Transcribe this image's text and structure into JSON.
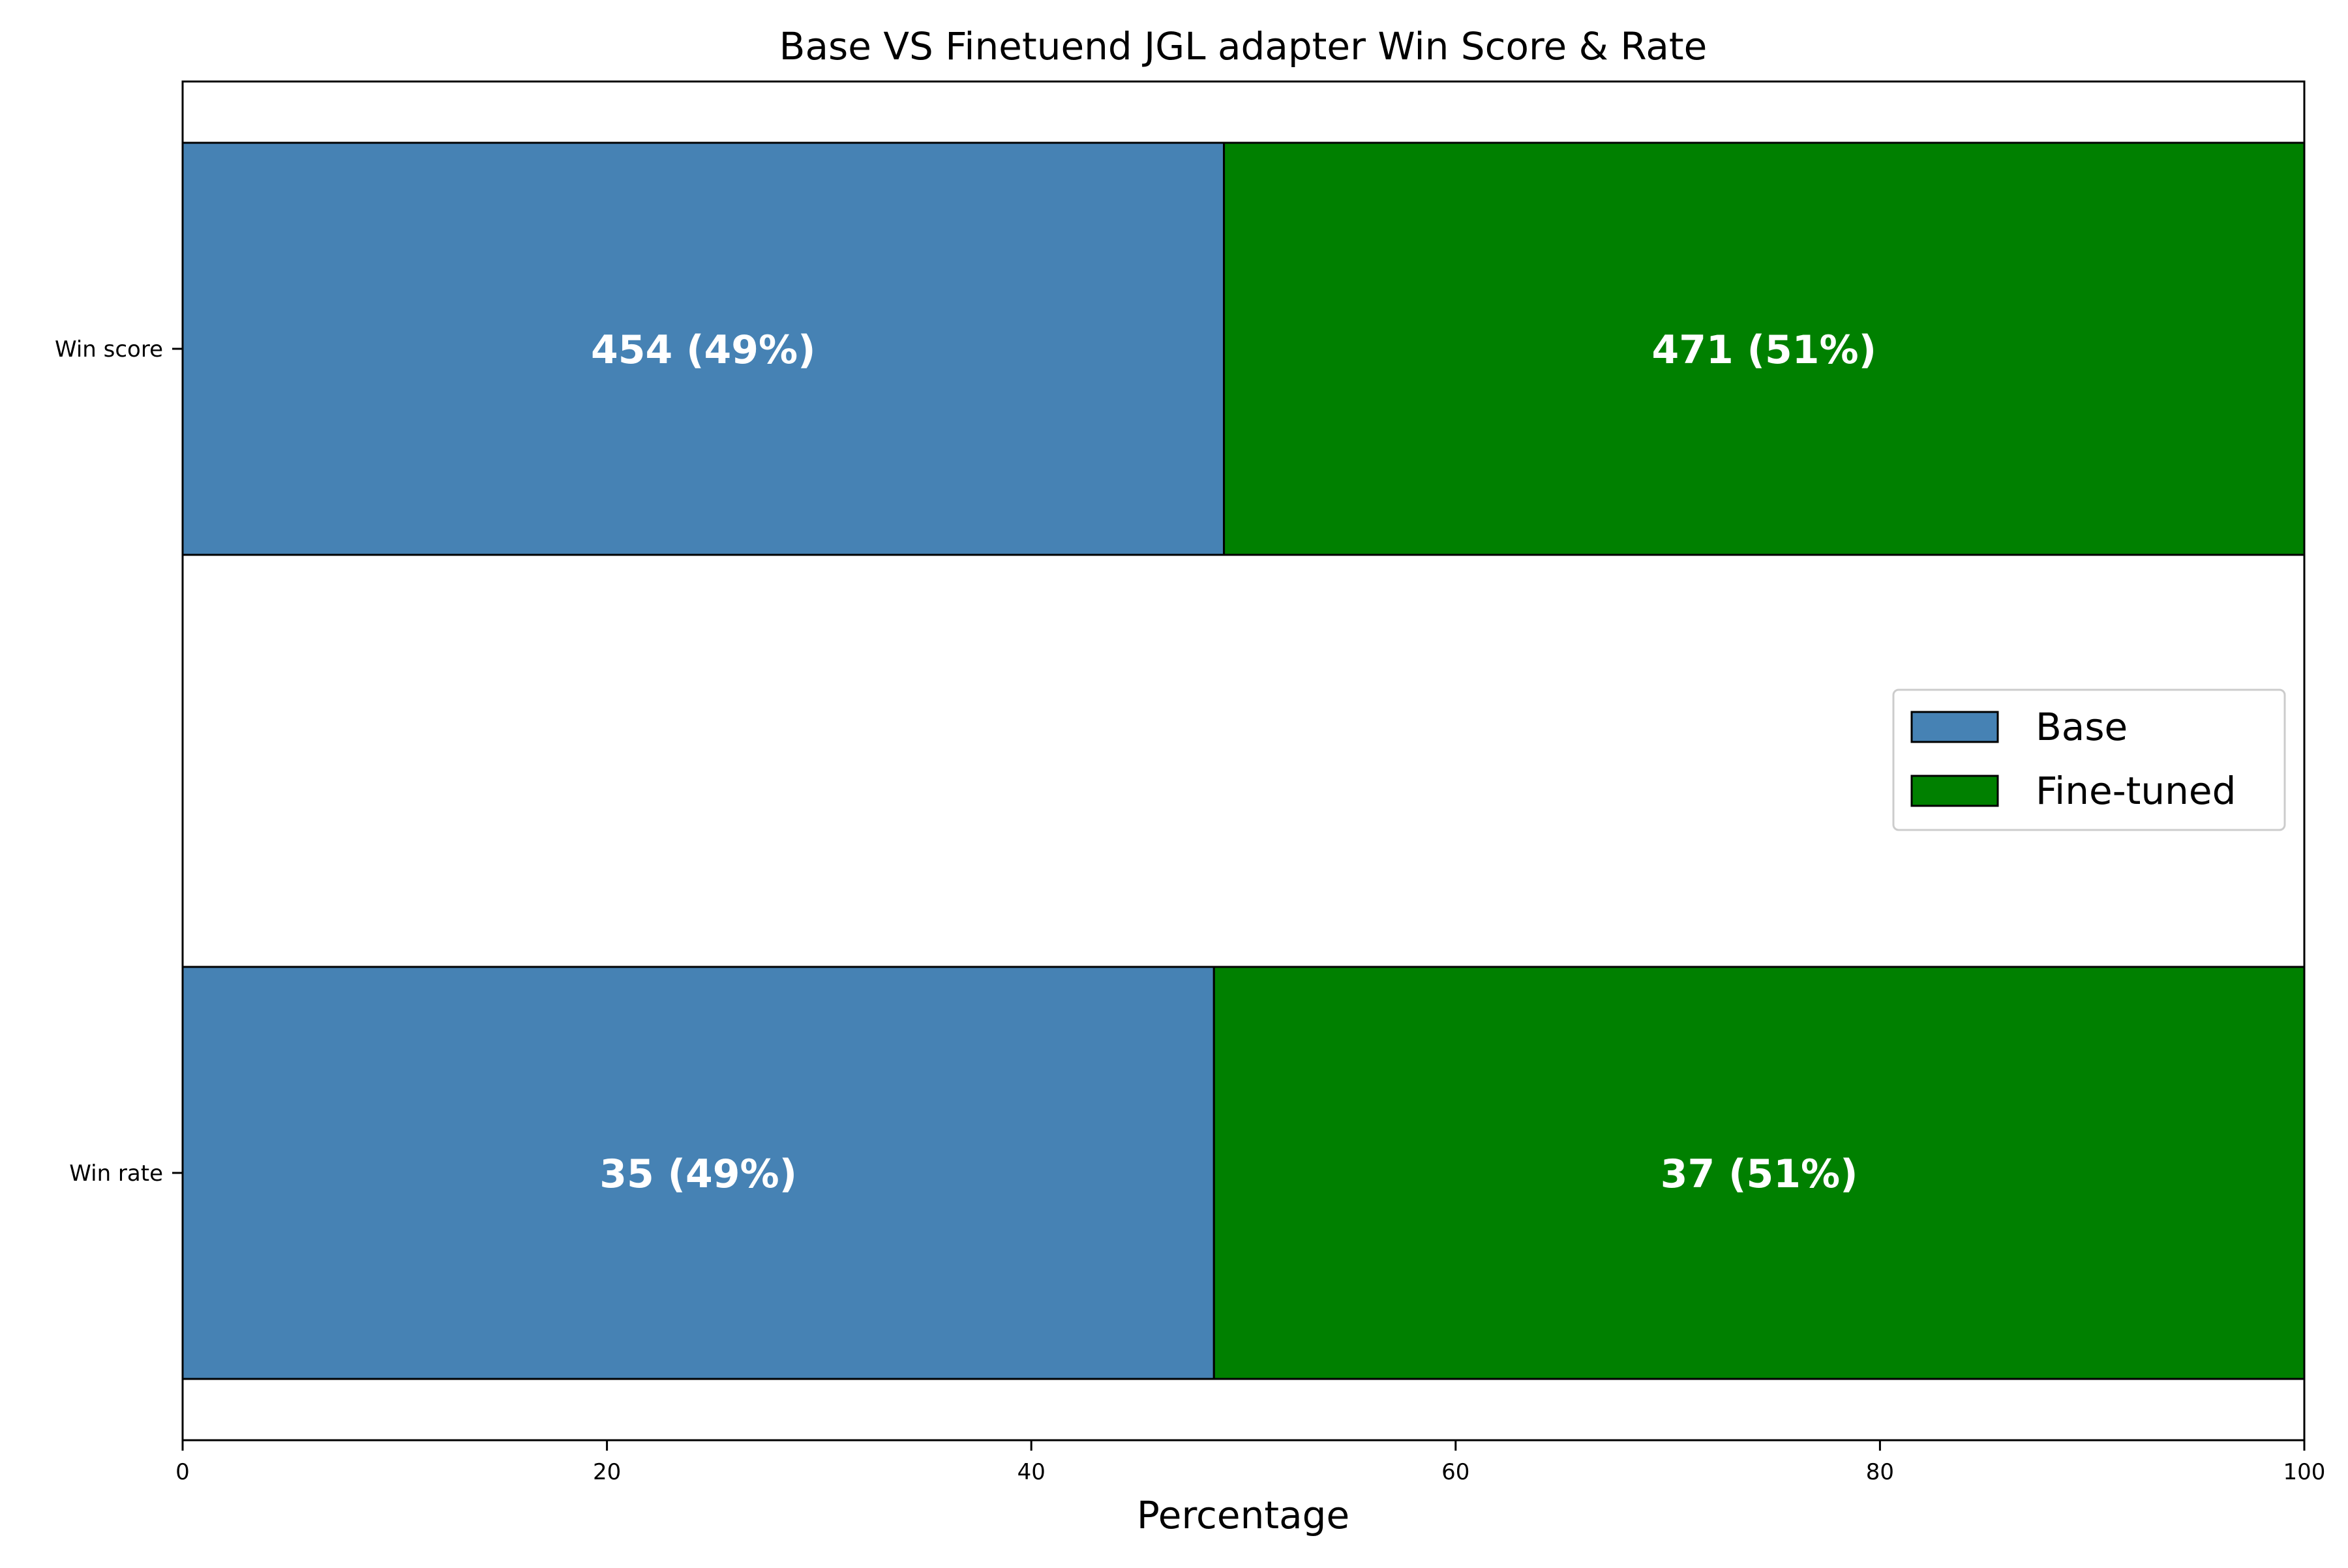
{
  "chart_data": {
    "type": "bar",
    "orientation": "horizontal",
    "stacked": true,
    "title": "Base VS Finetuend JGL adapter Win Score & Rate",
    "xlabel": "Percentage",
    "ylabel": "",
    "xlim": [
      0,
      100
    ],
    "xticks": [
      0,
      20,
      40,
      60,
      80,
      100
    ],
    "categories": [
      "Win score",
      "Win rate"
    ],
    "series": [
      {
        "name": "Base",
        "color": "#4682b4",
        "values": [
          49.08,
          48.61
        ],
        "labels": [
          "454 (49%)",
          "35 (49%)"
        ]
      },
      {
        "name": "Fine-tuned",
        "color": "#008000",
        "values": [
          50.92,
          51.39
        ],
        "labels": [
          "471 (51%)",
          "37 (51%)"
        ]
      }
    ],
    "grid": false,
    "legend": {
      "position": "center-right"
    }
  }
}
